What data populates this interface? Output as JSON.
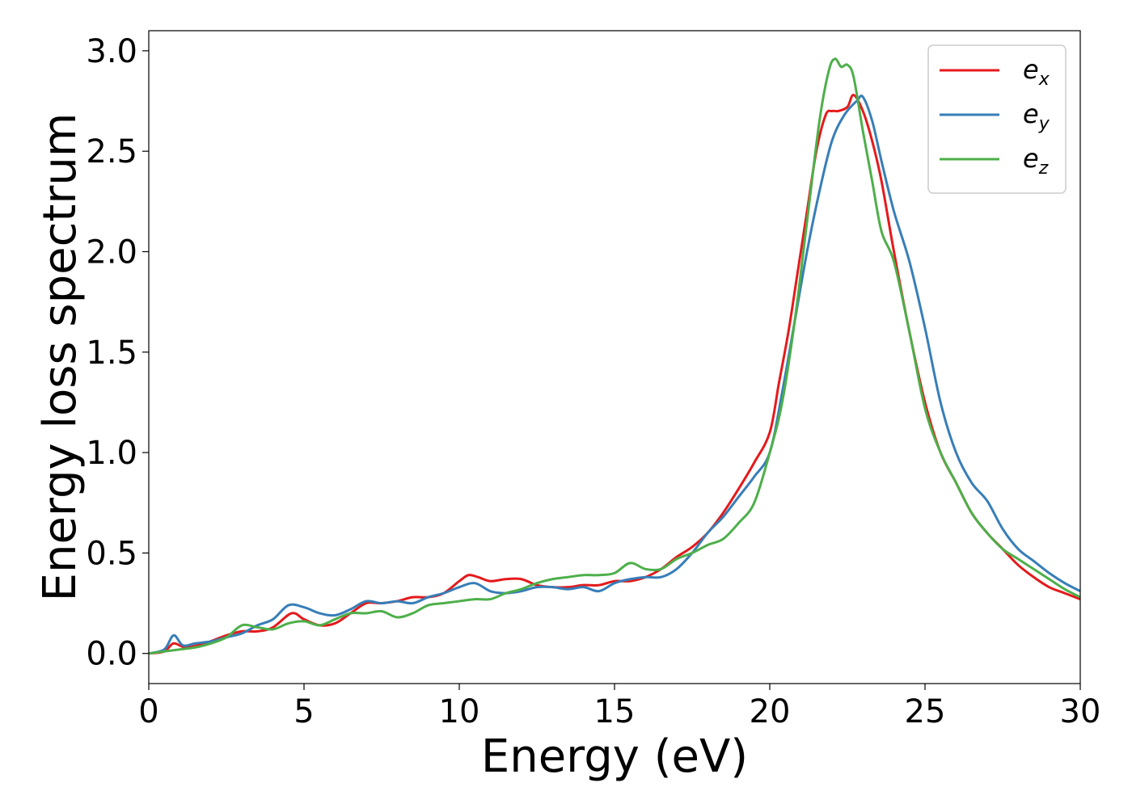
{
  "chart_data": {
    "type": "line",
    "title": "",
    "xlabel": "Energy (eV)",
    "ylabel": "Energy loss spectrum",
    "xlim": [
      0,
      30
    ],
    "ylim": [
      -0.15,
      3.1
    ],
    "xticks": [
      0,
      5,
      10,
      15,
      20,
      25,
      30
    ],
    "xtick_labels": [
      "0",
      "5",
      "10",
      "15",
      "20",
      "25",
      "30"
    ],
    "yticks": [
      0.0,
      0.5,
      1.0,
      1.5,
      2.0,
      2.5,
      3.0
    ],
    "ytick_labels": [
      "0.0",
      "0.5",
      "1.0",
      "1.5",
      "2.0",
      "2.5",
      "3.0"
    ],
    "grid": false,
    "legend_position": "top-right",
    "series": [
      {
        "name": "e_x",
        "legend_base": "e",
        "legend_sub": "x",
        "color": "#e41a1c",
        "x": [
          0,
          0.5,
          0.8,
          1.2,
          1.8,
          2.5,
          3.0,
          3.5,
          4.0,
          4.6,
          5.0,
          5.5,
          6.0,
          6.5,
          7.0,
          7.5,
          8.0,
          8.5,
          9.0,
          9.5,
          10.0,
          10.3,
          10.6,
          11.0,
          11.5,
          12.0,
          12.5,
          13.0,
          13.5,
          14.0,
          14.5,
          15.0,
          15.5,
          16.0,
          16.5,
          17.0,
          17.5,
          18.0,
          18.5,
          19.0,
          19.5,
          20.0,
          20.3,
          20.6,
          20.9,
          21.2,
          21.5,
          21.8,
          22.0,
          22.2,
          22.5,
          22.7,
          23.0,
          23.3,
          23.6,
          24.0,
          24.5,
          25.0,
          25.5,
          26.0,
          26.5,
          27.0,
          27.5,
          28.0,
          28.5,
          29.0,
          29.5,
          30.0
        ],
        "y": [
          0,
          0.01,
          0.05,
          0.03,
          0.05,
          0.09,
          0.11,
          0.11,
          0.13,
          0.2,
          0.17,
          0.14,
          0.15,
          0.2,
          0.25,
          0.25,
          0.26,
          0.28,
          0.28,
          0.3,
          0.36,
          0.39,
          0.38,
          0.36,
          0.37,
          0.37,
          0.34,
          0.33,
          0.33,
          0.34,
          0.34,
          0.36,
          0.36,
          0.38,
          0.42,
          0.48,
          0.53,
          0.6,
          0.7,
          0.82,
          0.95,
          1.1,
          1.35,
          1.6,
          1.9,
          2.2,
          2.5,
          2.68,
          2.7,
          2.7,
          2.72,
          2.78,
          2.7,
          2.55,
          2.35,
          2.0,
          1.6,
          1.25,
          1.0,
          0.85,
          0.7,
          0.6,
          0.52,
          0.44,
          0.38,
          0.33,
          0.3,
          0.27
        ]
      },
      {
        "name": "e_y",
        "legend_base": "e",
        "legend_sub": "y",
        "color": "#377eb8",
        "x": [
          0,
          0.5,
          0.8,
          1.1,
          1.5,
          2.0,
          2.5,
          3.0,
          3.5,
          4.0,
          4.5,
          5.0,
          5.5,
          6.0,
          6.5,
          7.0,
          7.5,
          8.0,
          8.5,
          9.0,
          9.5,
          10.0,
          10.5,
          11.0,
          11.5,
          12.0,
          12.5,
          13.0,
          13.5,
          14.0,
          14.5,
          15.0,
          15.5,
          16.0,
          16.5,
          17.0,
          17.5,
          18.0,
          18.5,
          19.0,
          19.5,
          20.0,
          20.4,
          20.8,
          21.2,
          21.6,
          22.0,
          22.4,
          22.8,
          23.0,
          23.3,
          23.6,
          24.0,
          24.5,
          25.0,
          25.5,
          26.0,
          26.5,
          27.0,
          27.5,
          28.0,
          28.5,
          29.0,
          29.5,
          30.0
        ],
        "y": [
          0,
          0.02,
          0.09,
          0.04,
          0.05,
          0.06,
          0.08,
          0.1,
          0.14,
          0.17,
          0.24,
          0.23,
          0.2,
          0.19,
          0.22,
          0.26,
          0.25,
          0.26,
          0.25,
          0.28,
          0.3,
          0.33,
          0.35,
          0.31,
          0.3,
          0.31,
          0.33,
          0.33,
          0.32,
          0.33,
          0.31,
          0.35,
          0.37,
          0.38,
          0.38,
          0.42,
          0.5,
          0.6,
          0.68,
          0.78,
          0.88,
          1.0,
          1.3,
          1.65,
          2.0,
          2.3,
          2.55,
          2.68,
          2.75,
          2.77,
          2.65,
          2.45,
          2.2,
          1.95,
          1.62,
          1.25,
          1.0,
          0.85,
          0.76,
          0.62,
          0.52,
          0.46,
          0.4,
          0.35,
          0.31
        ]
      },
      {
        "name": "e_z",
        "legend_base": "e",
        "legend_sub": "z",
        "color": "#4daf4a",
        "x": [
          0,
          0.5,
          1.0,
          1.5,
          2.0,
          2.5,
          3.0,
          3.5,
          4.0,
          4.5,
          5.0,
          5.5,
          6.0,
          6.5,
          7.0,
          7.5,
          8.0,
          8.5,
          9.0,
          9.5,
          10.0,
          10.5,
          11.0,
          11.5,
          12.0,
          12.5,
          13.0,
          13.5,
          14.0,
          14.5,
          15.0,
          15.5,
          16.0,
          16.5,
          17.0,
          17.5,
          18.0,
          18.5,
          19.0,
          19.5,
          20.0,
          20.4,
          20.8,
          21.2,
          21.6,
          21.9,
          22.1,
          22.3,
          22.5,
          22.7,
          23.0,
          23.3,
          23.6,
          24.0,
          24.5,
          25.0,
          25.5,
          26.0,
          26.5,
          27.0,
          27.5,
          28.0,
          28.5,
          29.0,
          29.5,
          30.0
        ],
        "y": [
          0,
          0.01,
          0.02,
          0.03,
          0.05,
          0.08,
          0.14,
          0.13,
          0.12,
          0.15,
          0.16,
          0.14,
          0.17,
          0.2,
          0.2,
          0.21,
          0.18,
          0.2,
          0.24,
          0.25,
          0.26,
          0.27,
          0.27,
          0.3,
          0.32,
          0.35,
          0.37,
          0.38,
          0.39,
          0.39,
          0.4,
          0.45,
          0.42,
          0.42,
          0.47,
          0.5,
          0.54,
          0.57,
          0.65,
          0.75,
          1.0,
          1.25,
          1.65,
          2.15,
          2.65,
          2.9,
          2.96,
          2.92,
          2.93,
          2.87,
          2.6,
          2.35,
          2.1,
          1.95,
          1.6,
          1.22,
          1.0,
          0.85,
          0.7,
          0.6,
          0.52,
          0.47,
          0.42,
          0.37,
          0.32,
          0.28
        ]
      }
    ]
  }
}
